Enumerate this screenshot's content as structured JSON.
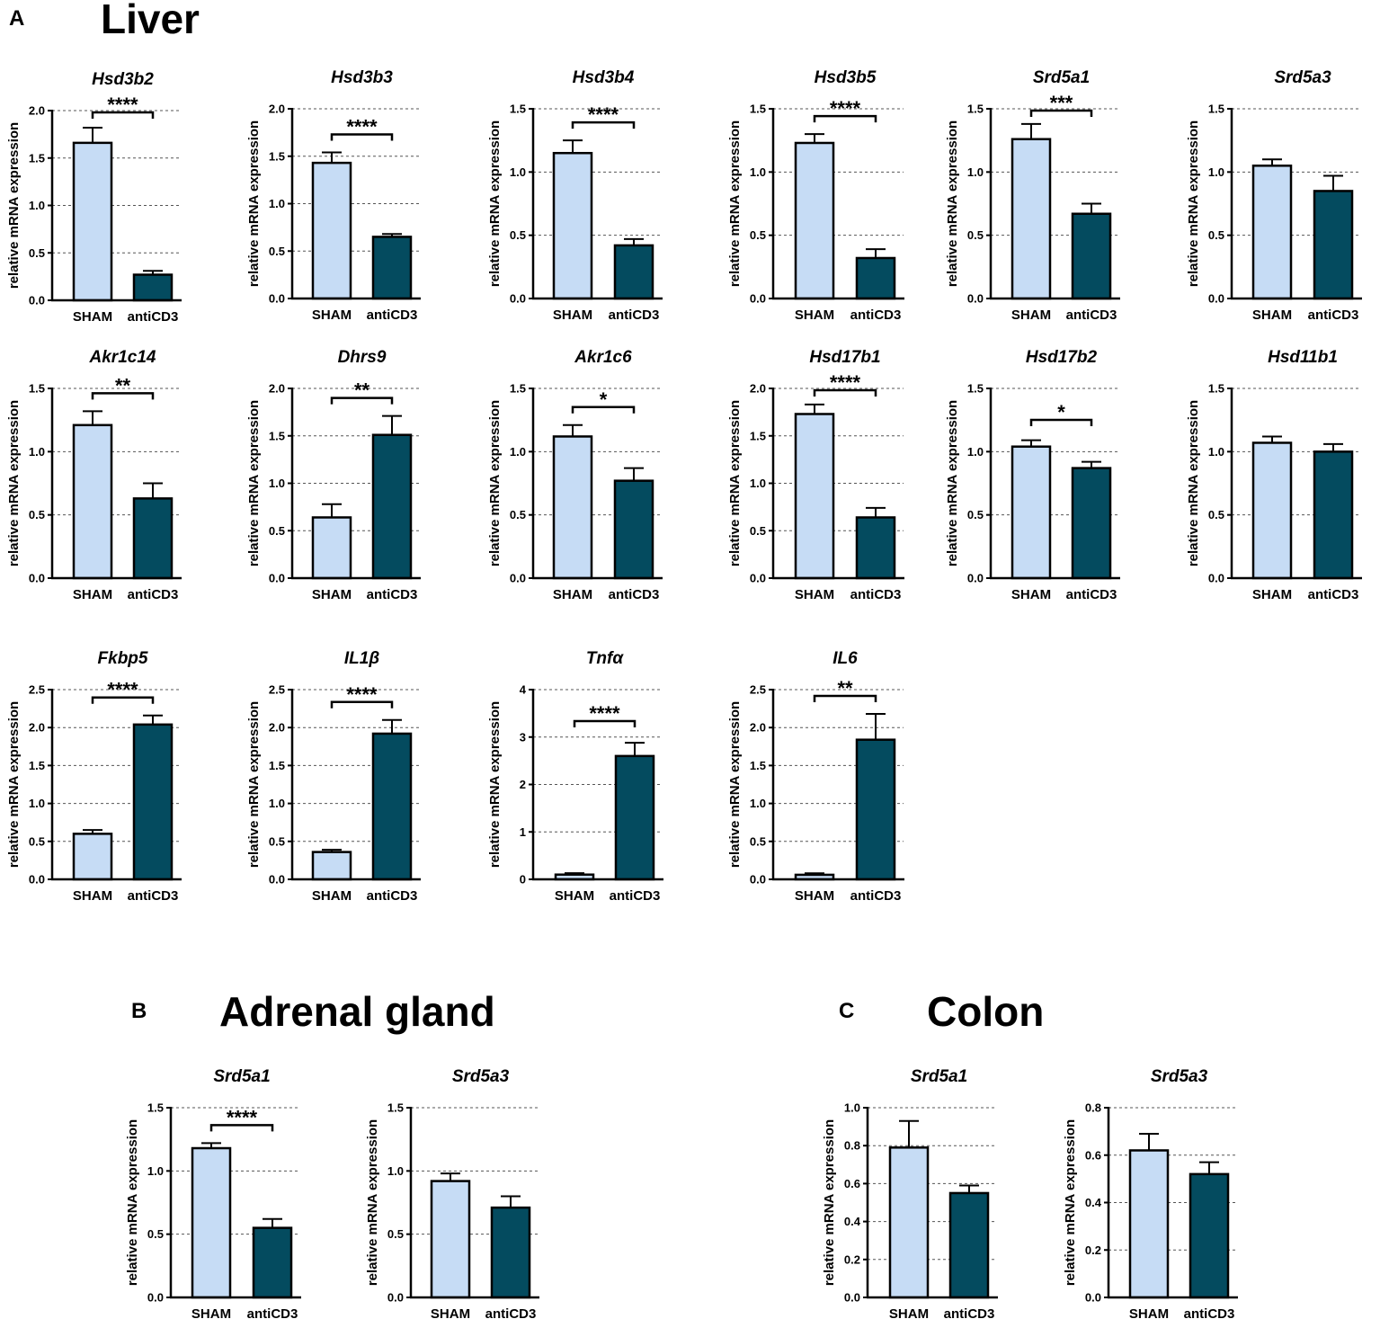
{
  "panels": {
    "A": {
      "letter": "A",
      "title": "Liver"
    },
    "B": {
      "letter": "B",
      "title": "Adrenal gland"
    },
    "C": {
      "letter": "C",
      "title": "Colon"
    }
  },
  "colors": {
    "sham": "#c6dcf5",
    "anticd3": "#044b5f",
    "outline": "#000000",
    "grid": "#555555"
  },
  "chart_data": [
    {
      "type": "bar",
      "panel": "A",
      "title": "Hsd3b2",
      "ylabel": "relative mRNA expression",
      "categories": [
        "SHAM",
        "antiCD3"
      ],
      "values": [
        1.66,
        0.27
      ],
      "errors": [
        0.16,
        0.04
      ],
      "ylim": [
        0,
        2.0
      ],
      "ticks": [
        "0.0",
        "0.5",
        "1.0",
        "1.5",
        "2.0"
      ],
      "significance": "****"
    },
    {
      "type": "bar",
      "panel": "A",
      "title": "Hsd3b3",
      "ylabel": "relative mRNA expression",
      "categories": [
        "SHAM",
        "antiCD3"
      ],
      "values": [
        1.43,
        0.65
      ],
      "errors": [
        0.11,
        0.03
      ],
      "ylim": [
        0,
        2.0
      ],
      "ticks": [
        "0.0",
        "0.5",
        "1.0",
        "1.5",
        "2.0"
      ],
      "significance": "****"
    },
    {
      "type": "bar",
      "panel": "A",
      "title": "Hsd3b4",
      "ylabel": "relative mRNA expression",
      "categories": [
        "SHAM",
        "antiCD3"
      ],
      "values": [
        1.15,
        0.42
      ],
      "errors": [
        0.1,
        0.05
      ],
      "ylim": [
        0,
        1.5
      ],
      "ticks": [
        "0.0",
        "0.5",
        "1.0",
        "1.5"
      ],
      "significance": "****"
    },
    {
      "type": "bar",
      "panel": "A",
      "title": "Hsd3b5",
      "ylabel": "relative mRNA expression",
      "categories": [
        "SHAM",
        "antiCD3"
      ],
      "values": [
        1.23,
        0.32
      ],
      "errors": [
        0.07,
        0.07
      ],
      "ylim": [
        0,
        1.5
      ],
      "ticks": [
        "0.0",
        "0.5",
        "1.0",
        "1.5"
      ],
      "significance": "****"
    },
    {
      "type": "bar",
      "panel": "A",
      "title": "Srd5a1",
      "ylabel": "relative mRNA expression",
      "categories": [
        "SHAM",
        "antiCD3"
      ],
      "values": [
        1.26,
        0.67
      ],
      "errors": [
        0.12,
        0.08
      ],
      "ylim": [
        0,
        1.5
      ],
      "ticks": [
        "0.0",
        "0.5",
        "1.0",
        "1.5"
      ],
      "significance": "***"
    },
    {
      "type": "bar",
      "panel": "A",
      "title": "Srd5a3",
      "ylabel": "relative mRNA expression",
      "categories": [
        "SHAM",
        "antiCD3"
      ],
      "values": [
        1.05,
        0.85
      ],
      "errors": [
        0.05,
        0.12
      ],
      "ylim": [
        0,
        1.5
      ],
      "ticks": [
        "0.0",
        "0.5",
        "1.0",
        "1.5"
      ],
      "significance": ""
    },
    {
      "type": "bar",
      "panel": "A",
      "title": "Akr1c14",
      "ylabel": "relative mRNA expression",
      "categories": [
        "SHAM",
        "antiCD3"
      ],
      "values": [
        1.21,
        0.63
      ],
      "errors": [
        0.11,
        0.12
      ],
      "ylim": [
        0,
        1.5
      ],
      "ticks": [
        "0.0",
        "0.5",
        "1.0",
        "1.5"
      ],
      "significance": "**"
    },
    {
      "type": "bar",
      "panel": "A",
      "title": "Dhrs9",
      "ylabel": "relative mRNA expression",
      "categories": [
        "SHAM",
        "antiCD3"
      ],
      "values": [
        0.64,
        1.51
      ],
      "errors": [
        0.14,
        0.2
      ],
      "ylim": [
        0,
        2.0
      ],
      "ticks": [
        "0.0",
        "0.5",
        "1.0",
        "1.5",
        "2.0"
      ],
      "significance": "**"
    },
    {
      "type": "bar",
      "panel": "A",
      "title": "Akr1c6",
      "ylabel": "relative mRNA expression",
      "categories": [
        "SHAM",
        "antiCD3"
      ],
      "values": [
        1.12,
        0.77
      ],
      "errors": [
        0.09,
        0.1
      ],
      "ylim": [
        0,
        1.5
      ],
      "ticks": [
        "0.0",
        "0.5",
        "1.0",
        "1.5"
      ],
      "significance": "*"
    },
    {
      "type": "bar",
      "panel": "A",
      "title": "Hsd17b1",
      "ylabel": "relative mRNA expression",
      "categories": [
        "SHAM",
        "antiCD3"
      ],
      "values": [
        1.73,
        0.64
      ],
      "errors": [
        0.1,
        0.1
      ],
      "ylim": [
        0,
        2.0
      ],
      "ticks": [
        "0.0",
        "0.5",
        "1.0",
        "1.5",
        "2.0"
      ],
      "significance": "****"
    },
    {
      "type": "bar",
      "panel": "A",
      "title": "Hsd17b2",
      "ylabel": "relative mRNA expression",
      "categories": [
        "SHAM",
        "antiCD3"
      ],
      "values": [
        1.04,
        0.87
      ],
      "errors": [
        0.05,
        0.05
      ],
      "ylim": [
        0,
        1.5
      ],
      "ticks": [
        "0.0",
        "0.5",
        "1.0",
        "1.5"
      ],
      "significance": "*"
    },
    {
      "type": "bar",
      "panel": "A",
      "title": "Hsd11b1",
      "ylabel": "relative mRNA expression",
      "categories": [
        "SHAM",
        "antiCD3"
      ],
      "values": [
        1.07,
        1.0
      ],
      "errors": [
        0.05,
        0.06
      ],
      "ylim": [
        0,
        1.5
      ],
      "ticks": [
        "0.0",
        "0.5",
        "1.0",
        "1.5"
      ],
      "significance": ""
    },
    {
      "type": "bar",
      "panel": "A",
      "title": "Fkbp5",
      "ylabel": "relative mRNA expression",
      "categories": [
        "SHAM",
        "antiCD3"
      ],
      "values": [
        0.6,
        2.04
      ],
      "errors": [
        0.05,
        0.12
      ],
      "ylim": [
        0,
        2.5
      ],
      "ticks": [
        "0.0",
        "0.5",
        "1.0",
        "1.5",
        "2.0",
        "2.5"
      ],
      "significance": "****"
    },
    {
      "type": "bar",
      "panel": "A",
      "title": "IL1β",
      "ylabel": "relative mRNA expression",
      "categories": [
        "SHAM",
        "antiCD3"
      ],
      "values": [
        0.36,
        1.92
      ],
      "errors": [
        0.03,
        0.18
      ],
      "ylim": [
        0,
        2.5
      ],
      "ticks": [
        "0.0",
        "0.5",
        "1.0",
        "1.5",
        "2.0",
        "2.5"
      ],
      "significance": "****"
    },
    {
      "type": "bar",
      "panel": "A",
      "title": "Tnfα",
      "ylabel": "relative mRNA expression",
      "categories": [
        "SHAM",
        "antiCD3"
      ],
      "values": [
        0.1,
        2.6
      ],
      "errors": [
        0.03,
        0.28
      ],
      "ylim": [
        0,
        4
      ],
      "ticks": [
        "0",
        "1",
        "2",
        "3",
        "4"
      ],
      "significance": "****"
    },
    {
      "type": "bar",
      "panel": "A",
      "title": "IL6",
      "ylabel": "relative mRNA expression",
      "categories": [
        "SHAM",
        "antiCD3"
      ],
      "values": [
        0.06,
        1.84
      ],
      "errors": [
        0.02,
        0.34
      ],
      "ylim": [
        0,
        2.5
      ],
      "ticks": [
        "0.0",
        "0.5",
        "1.0",
        "1.5",
        "2.0",
        "2.5"
      ],
      "significance": "**"
    },
    {
      "type": "bar",
      "panel": "B",
      "title": "Srd5a1",
      "ylabel": "relative mRNA expression",
      "categories": [
        "SHAM",
        "antiCD3"
      ],
      "values": [
        1.18,
        0.55
      ],
      "errors": [
        0.04,
        0.07
      ],
      "ylim": [
        0,
        1.5
      ],
      "ticks": [
        "0.0",
        "0.5",
        "1.0",
        "1.5"
      ],
      "significance": "****"
    },
    {
      "type": "bar",
      "panel": "B",
      "title": "Srd5a3",
      "ylabel": "relative mRNA expression",
      "categories": [
        "SHAM",
        "antiCD3"
      ],
      "values": [
        0.92,
        0.71
      ],
      "errors": [
        0.06,
        0.09
      ],
      "ylim": [
        0,
        1.5
      ],
      "ticks": [
        "0.0",
        "0.5",
        "1.0",
        "1.5"
      ],
      "significance": ""
    },
    {
      "type": "bar",
      "panel": "C",
      "title": "Srd5a1",
      "ylabel": "relative mRNA expression",
      "categories": [
        "SHAM",
        "antiCD3"
      ],
      "values": [
        0.79,
        0.55
      ],
      "errors": [
        0.14,
        0.04
      ],
      "ylim": [
        0,
        1.0
      ],
      "ticks": [
        "0.0",
        "0.2",
        "0.4",
        "0.6",
        "0.8",
        "1.0"
      ],
      "significance": ""
    },
    {
      "type": "bar",
      "panel": "C",
      "title": "Srd5a3",
      "ylabel": "relative mRNA expression",
      "categories": [
        "SHAM",
        "antiCD3"
      ],
      "values": [
        0.62,
        0.52
      ],
      "errors": [
        0.07,
        0.05
      ],
      "ylim": [
        0,
        0.8
      ],
      "ticks": [
        "0.0",
        "0.2",
        "0.4",
        "0.6",
        "0.8"
      ],
      "significance": ""
    }
  ]
}
